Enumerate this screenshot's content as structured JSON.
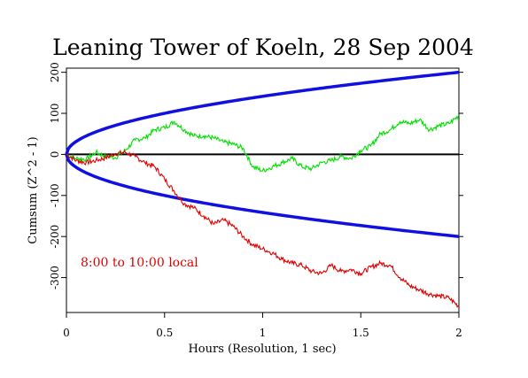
{
  "chart_data": {
    "type": "line",
    "title": "Leaning Tower of Koeln, 28 Sep 2004",
    "xlabel": "Hours (Resolution, 1 sec)",
    "ylabel": "Cumsum (Z^2 - 1)",
    "xlim": [
      0,
      2
    ],
    "ylim": [
      -385,
      210
    ],
    "x_ticks": [
      {
        "value": 0,
        "label": "0"
      },
      {
        "value": 0.5,
        "label": "0.5"
      },
      {
        "value": 1,
        "label": "1"
      },
      {
        "value": 1.5,
        "label": "1.5"
      },
      {
        "value": 2,
        "label": "2"
      }
    ],
    "y_ticks": [
      {
        "value": 200,
        "label": "200"
      },
      {
        "value": 100,
        "label": "100"
      },
      {
        "value": 0,
        "label": "0"
      },
      {
        "value": -100,
        "label": "-100"
      },
      {
        "value": -200,
        "label": "-200"
      },
      {
        "value": -300,
        "label": "-300"
      }
    ],
    "annotation": {
      "text": "8:00 to 10:00 local",
      "color": "#e00000"
    },
    "colors": {
      "envelope": "#1010e0",
      "green": "#00e000",
      "red": "#e00000",
      "zero": "#000000"
    },
    "envelope": {
      "description_value_at_end": 200,
      "shape": "sqrt"
    },
    "series": [
      {
        "color": "#00e000",
        "x": [
          0,
          0.05,
          0.1,
          0.15,
          0.2,
          0.25,
          0.3,
          0.35,
          0.4,
          0.45,
          0.5,
          0.55,
          0.6,
          0.65,
          0.7,
          0.75,
          0.8,
          0.85,
          0.9,
          0.95,
          1.0,
          1.05,
          1.1,
          1.15,
          1.2,
          1.25,
          1.3,
          1.35,
          1.4,
          1.45,
          1.5,
          1.55,
          1.6,
          1.65,
          1.7,
          1.75,
          1.8,
          1.85,
          1.9,
          1.95,
          2.0
        ],
        "values": [
          0,
          -10,
          -12,
          5,
          -5,
          -8,
          10,
          35,
          40,
          60,
          65,
          80,
          60,
          45,
          45,
          40,
          30,
          25,
          15,
          -30,
          -40,
          -30,
          -20,
          -10,
          -30,
          -35,
          -20,
          -15,
          -5,
          -10,
          10,
          20,
          50,
          60,
          80,
          75,
          85,
          60,
          70,
          75,
          95
        ]
      },
      {
        "color": "#e00000",
        "x": [
          0,
          0.05,
          0.1,
          0.15,
          0.2,
          0.25,
          0.3,
          0.35,
          0.4,
          0.45,
          0.5,
          0.55,
          0.6,
          0.65,
          0.7,
          0.75,
          0.8,
          0.85,
          0.9,
          0.95,
          1.0,
          1.05,
          1.1,
          1.15,
          1.2,
          1.25,
          1.3,
          1.35,
          1.4,
          1.45,
          1.5,
          1.55,
          1.6,
          1.65,
          1.7,
          1.75,
          1.8,
          1.85,
          1.9,
          1.95,
          2.0
        ],
        "values": [
          0,
          -15,
          -20,
          -15,
          -8,
          2,
          5,
          -5,
          -20,
          -30,
          -60,
          -90,
          -120,
          -130,
          -150,
          -170,
          -160,
          -175,
          -200,
          -220,
          -230,
          -240,
          -255,
          -265,
          -270,
          -285,
          -290,
          -270,
          -285,
          -280,
          -290,
          -275,
          -265,
          -270,
          -300,
          -320,
          -330,
          -340,
          -345,
          -350,
          -370
        ]
      }
    ]
  }
}
